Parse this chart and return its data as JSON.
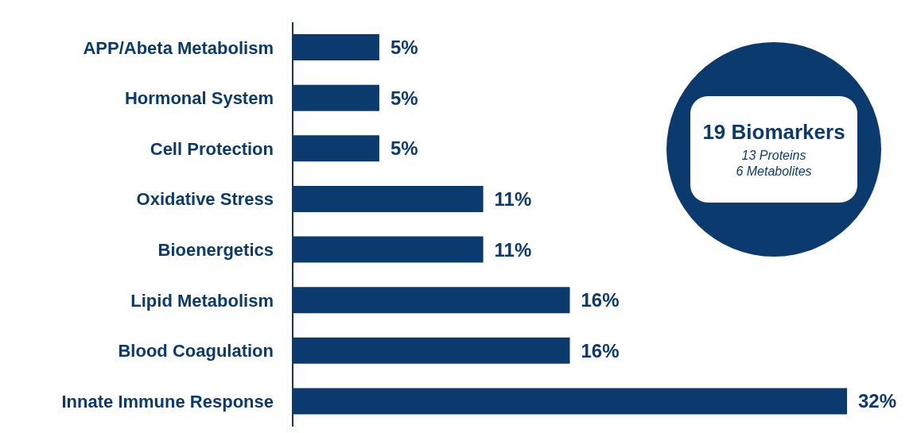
{
  "chart_data": {
    "type": "bar",
    "orientation": "horizontal",
    "categories": [
      "APP/Abeta Metabolism",
      "Hormonal System",
      "Cell Protection",
      "Oxidative Stress",
      "Bioenergetics",
      "Lipid Metabolism",
      "Blood Coagulation",
      "Innate Immune Response"
    ],
    "values": [
      5,
      5,
      5,
      11,
      11,
      16,
      16,
      32
    ],
    "value_labels": [
      "5%",
      "5%",
      "5%",
      "11%",
      "11%",
      "16%",
      "16%",
      "32%"
    ],
    "color": "#0b3a6e",
    "annotations": [
      "19 Biomarkers",
      "13 Proteins",
      "6 Metabolites"
    ]
  }
}
